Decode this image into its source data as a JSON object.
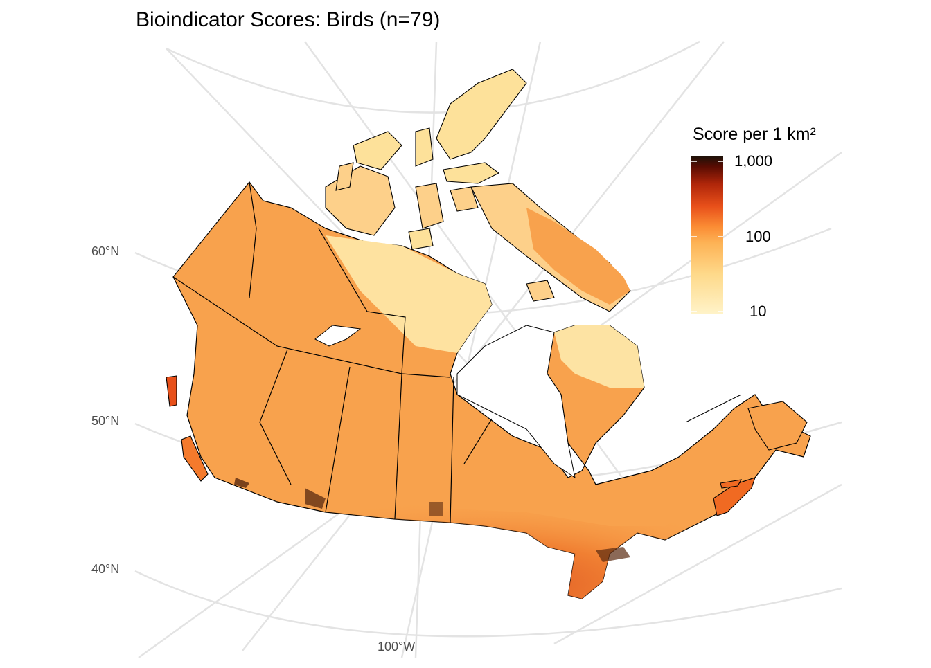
{
  "title": "Bioindicator Scores: Birds (n=79)",
  "axes": {
    "lat_labels": [
      "60°N",
      "50°N",
      "40°N"
    ],
    "lon_labels": [
      "100°W"
    ]
  },
  "legend": {
    "title": "Score per 1 km²",
    "scale": "log",
    "ticks": [
      "1,000",
      "100",
      "10"
    ],
    "colors": [
      "#1a1209",
      "#5a0c02",
      "#b0260a",
      "#e8501a",
      "#fb8c34",
      "#fdb255",
      "#fed98a",
      "#fff3c8"
    ]
  },
  "map": {
    "region": "Canada",
    "fill_low": "#fff1c0",
    "fill_mid": "#fca950",
    "fill_high": "#d9461a",
    "fill_hotspot": "#5a2a10",
    "border_color": "#000000",
    "graticule_color": "#e3e3e3"
  }
}
